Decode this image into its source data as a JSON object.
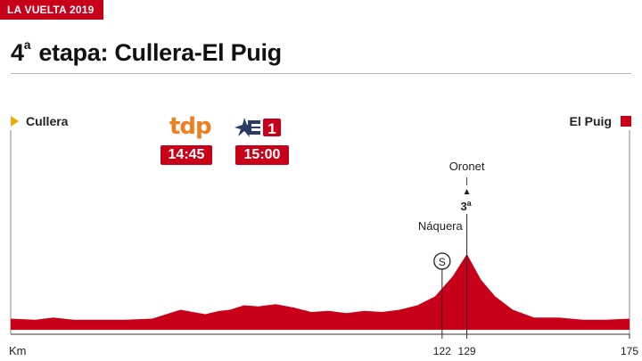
{
  "header": {
    "badge": "LA VUELTA 2019",
    "title_num": "4",
    "title_sup": "a",
    "title_rest": " etapa: Cullera-El Puig"
  },
  "route": {
    "start": "Cullera",
    "finish": "El Puig"
  },
  "broadcast": {
    "tdp_logo": "tdp",
    "tdp_time": "14:45",
    "tve_number": "1",
    "tve_time": "15:00"
  },
  "colors": {
    "profile": "#c8001a",
    "accent": "#c8001a",
    "start_marker": "#f2a800",
    "tdp": "#f07d1e",
    "tve_blue": "#2b3a67"
  },
  "chart_data": {
    "type": "area",
    "xlabel": "Km",
    "xlim": [
      0,
      175
    ],
    "x_ticks": [
      {
        "value": 122,
        "label": "122"
      },
      {
        "value": 129,
        "label": "129"
      },
      {
        "value": 175,
        "label": "175"
      }
    ],
    "profile": {
      "km": [
        0,
        7,
        12,
        18,
        24,
        32,
        40,
        48,
        55,
        59,
        62,
        66,
        70,
        75,
        80,
        85,
        90,
        95,
        100,
        105,
        110,
        115,
        120,
        125,
        129,
        133,
        137,
        142,
        148,
        155,
        162,
        168,
        175
      ],
      "height": [
        0.1,
        0.09,
        0.11,
        0.09,
        0.09,
        0.09,
        0.1,
        0.18,
        0.14,
        0.17,
        0.18,
        0.22,
        0.21,
        0.23,
        0.2,
        0.16,
        0.17,
        0.15,
        0.17,
        0.16,
        0.18,
        0.22,
        0.3,
        0.48,
        0.68,
        0.45,
        0.3,
        0.18,
        0.11,
        0.11,
        0.09,
        0.09,
        0.1
      ]
    },
    "annotations": [
      {
        "name": "Náquera",
        "km": 122,
        "type": "sprint",
        "symbol": "S"
      },
      {
        "name": "Oronet",
        "km": 129,
        "type": "climb",
        "category": "3",
        "category_sup": "a"
      }
    ]
  }
}
